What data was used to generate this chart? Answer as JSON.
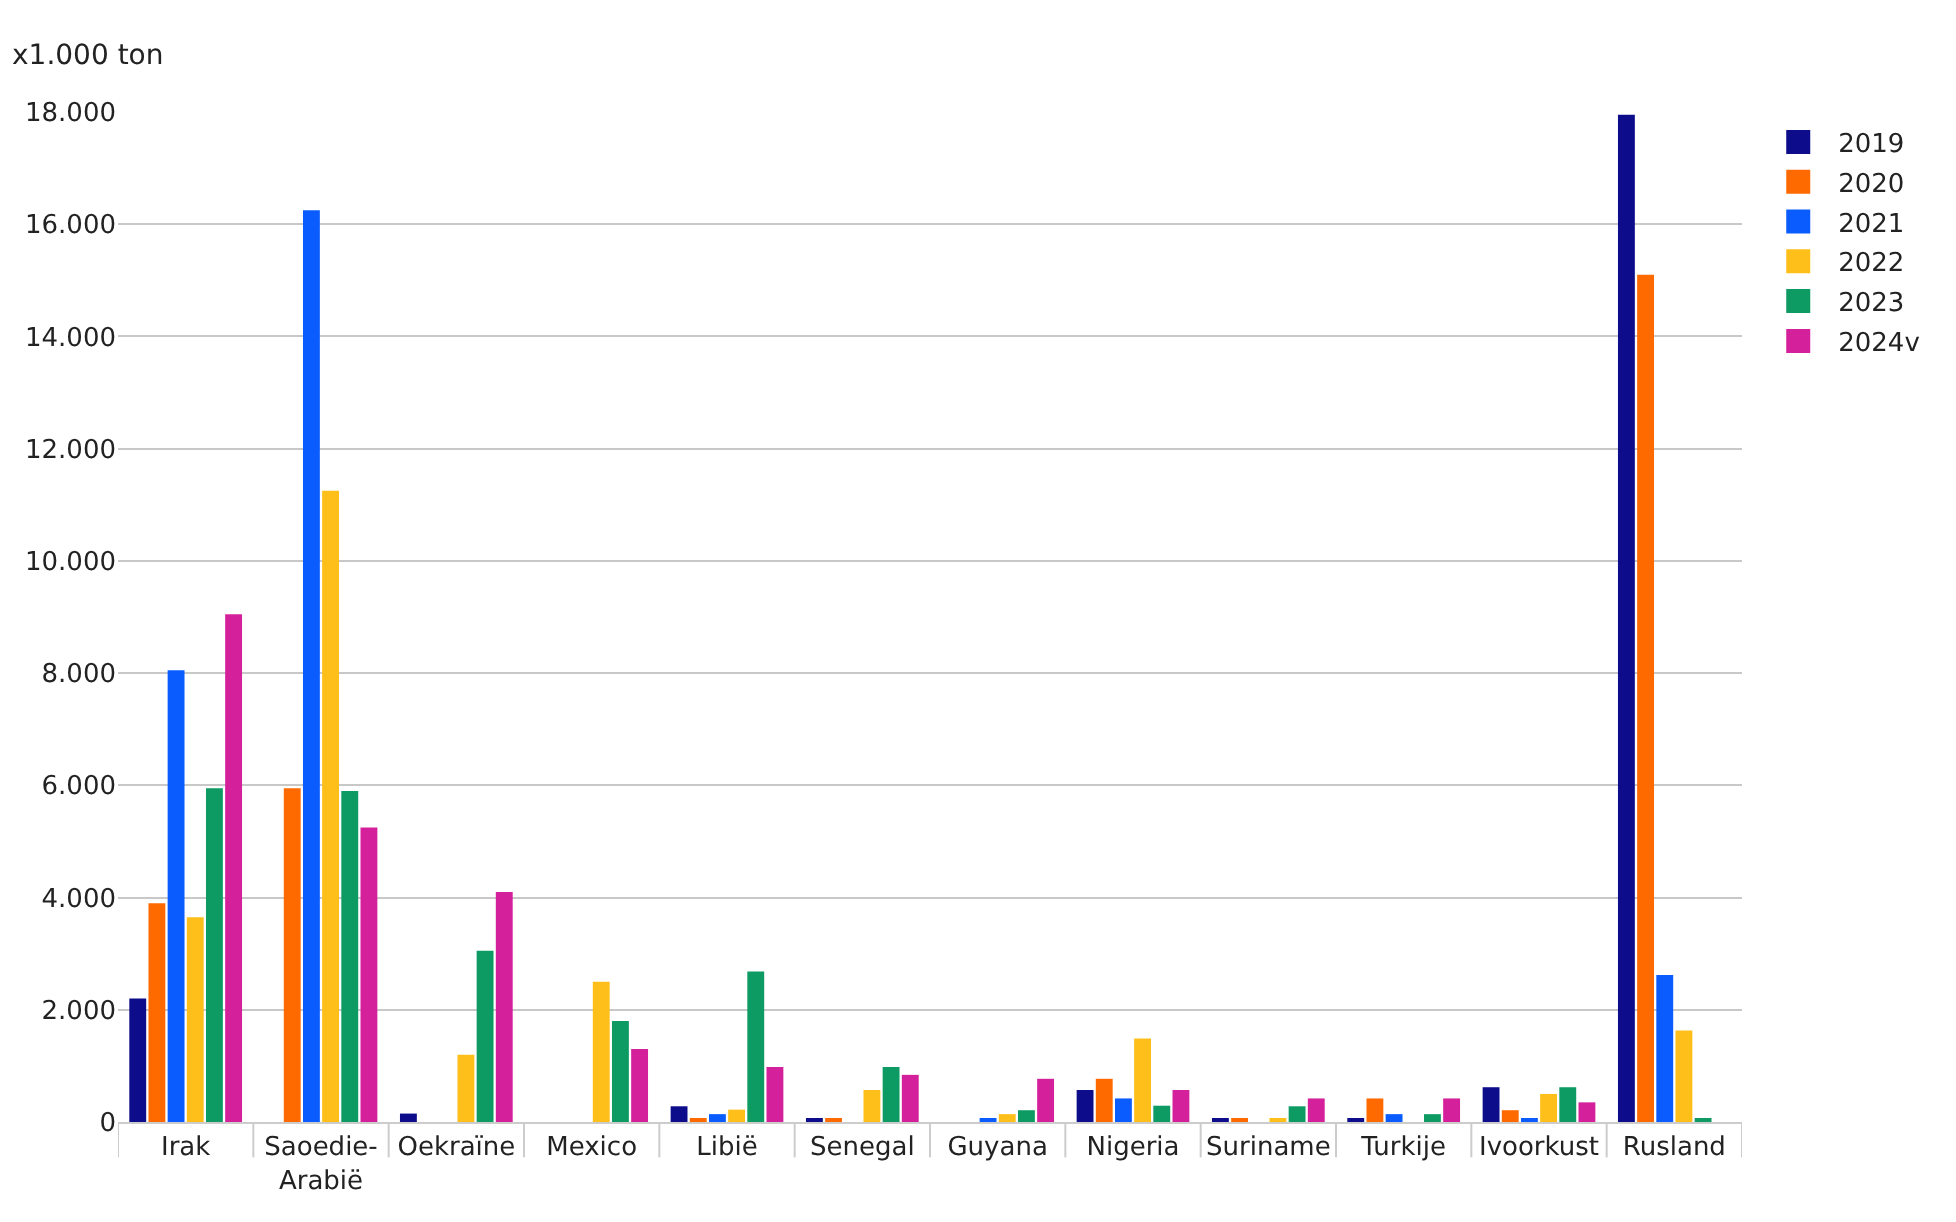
{
  "chart_data": {
    "type": "bar",
    "ylabel": "x1.000 ton",
    "categories": [
      "Irak",
      "Saoedie-\nArabië",
      "Oekraïne",
      "Mexico",
      "Libië",
      "Senegal",
      "Guyana",
      "Nigeria",
      "Suriname",
      "Turkije",
      "Ivoorkust",
      "Rusland"
    ],
    "series": [
      {
        "name": "2019",
        "color": "#0d0d8c",
        "values": [
          2200,
          0,
          150,
          0,
          280,
          60,
          0,
          570,
          60,
          60,
          620,
          17950
        ]
      },
      {
        "name": "2020",
        "color": "#ff6a00",
        "values": [
          3900,
          5950,
          0,
          0,
          60,
          60,
          0,
          770,
          60,
          420,
          210,
          15100
        ]
      },
      {
        "name": "2021",
        "color": "#0a5cff",
        "values": [
          8050,
          16250,
          0,
          0,
          140,
          0,
          60,
          420,
          0,
          140,
          60,
          2620
        ]
      },
      {
        "name": "2022",
        "color": "#ffbf1a",
        "values": [
          3650,
          11250,
          1200,
          2500,
          220,
          570,
          140,
          1490,
          60,
          0,
          500,
          1630
        ]
      },
      {
        "name": "2023",
        "color": "#0e9a63",
        "values": [
          5950,
          5900,
          3050,
          1800,
          2680,
          980,
          210,
          290,
          280,
          140,
          620,
          60
        ]
      },
      {
        "name": "2024v",
        "color": "#d4209b",
        "values": [
          9050,
          5250,
          4100,
          1300,
          980,
          840,
          770,
          570,
          420,
          420,
          350,
          0
        ]
      }
    ],
    "ylim": [
      0,
      18000
    ],
    "yticks": [
      0,
      {
        "value": 2000,
        "label": "2.000"
      },
      {
        "value": 4000,
        "label": "4.000"
      },
      {
        "value": 6000,
        "label": "6.000"
      },
      {
        "value": 8000,
        "label": "8.000"
      },
      {
        "value": 10000,
        "label": "10.000"
      },
      {
        "value": 12000,
        "label": "12.000"
      },
      {
        "value": 14000,
        "label": "14.000"
      },
      {
        "value": 16000,
        "label": "16.000"
      },
      {
        "value": 18000,
        "label": "18.000"
      }
    ],
    "grid": "y",
    "legend": "top right"
  }
}
